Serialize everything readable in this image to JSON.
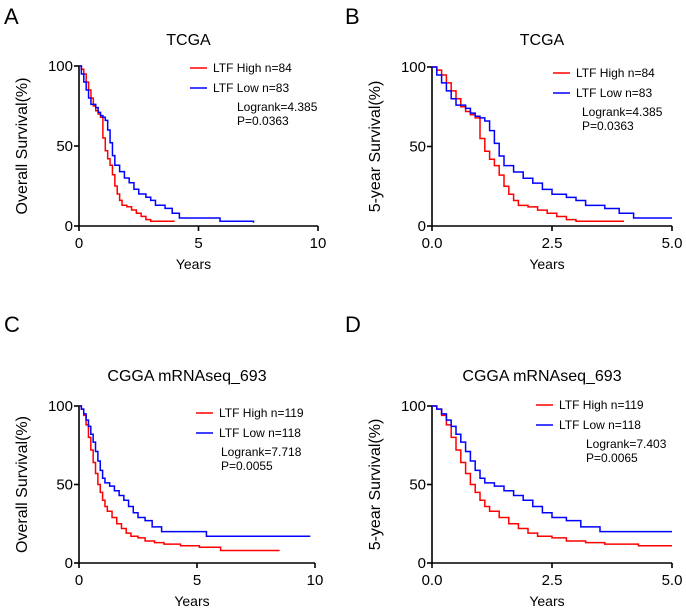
{
  "chart_data": [
    {
      "type": "line",
      "subtype": "kaplan-meier",
      "panel": "A",
      "title": "TCGA",
      "xlabel": "Years",
      "ylabel": "Overall Survival(%)",
      "xlim": [
        0,
        10
      ],
      "ylim": [
        0,
        100
      ],
      "xticks": [
        "0",
        "5",
        "10"
      ],
      "yticks": [
        "0",
        "50",
        "100"
      ],
      "grid": false,
      "legend_position": "top-right",
      "stats": {
        "logrank": "Logrank=4.385",
        "p": "P=0.0363"
      },
      "series": [
        {
          "name": "LTF High n=84",
          "color": "#ff0000",
          "x": [
            0,
            0.1,
            0.2,
            0.3,
            0.4,
            0.5,
            0.6,
            0.7,
            0.8,
            0.9,
            1.0,
            1.1,
            1.2,
            1.3,
            1.4,
            1.5,
            1.6,
            1.7,
            1.8,
            2.0,
            2.2,
            2.4,
            2.6,
            2.8,
            3.0,
            4.0
          ],
          "y": [
            100,
            98,
            95,
            90,
            85,
            80,
            75,
            72,
            70,
            68,
            55,
            47,
            42,
            38,
            32,
            25,
            20,
            16,
            13,
            12,
            10,
            8,
            6,
            4,
            3,
            3
          ]
        },
        {
          "name": "LTF Low n=83",
          "color": "#0000ff",
          "x": [
            0,
            0.1,
            0.2,
            0.3,
            0.4,
            0.5,
            0.6,
            0.7,
            0.8,
            0.9,
            1.0,
            1.1,
            1.2,
            1.3,
            1.4,
            1.5,
            1.7,
            1.9,
            2.1,
            2.3,
            2.5,
            2.8,
            3.0,
            3.2,
            3.6,
            3.9,
            4.2,
            5.9,
            7.3
          ],
          "y": [
            100,
            95,
            90,
            85,
            80,
            76,
            76,
            74,
            71,
            69,
            68,
            66,
            60,
            52,
            44,
            38,
            34,
            30,
            27,
            23,
            20,
            18,
            16,
            13,
            11,
            8,
            5,
            3,
            2
          ]
        }
      ]
    },
    {
      "type": "line",
      "subtype": "kaplan-meier",
      "panel": "B",
      "title": "TCGA",
      "xlabel": "Years",
      "ylabel": "5-year Survival(%)",
      "xlim": [
        0,
        5
      ],
      "ylim": [
        0,
        100
      ],
      "xticks": [
        "0.0",
        "2.5",
        "5.0"
      ],
      "yticks": [
        "0",
        "50",
        "100"
      ],
      "grid": false,
      "legend_position": "top-right",
      "stats": {
        "logrank": "Logrank=4.385",
        "p": "P=0.0363"
      },
      "series": [
        {
          "name": "LTF High n=84",
          "color": "#ff0000",
          "x": [
            0,
            0.1,
            0.2,
            0.3,
            0.4,
            0.5,
            0.6,
            0.7,
            0.8,
            0.9,
            1.0,
            1.1,
            1.2,
            1.3,
            1.4,
            1.5,
            1.6,
            1.7,
            1.8,
            2.0,
            2.2,
            2.4,
            2.6,
            2.8,
            3.0,
            4.0
          ],
          "y": [
            100,
            98,
            95,
            90,
            85,
            80,
            75,
            72,
            70,
            68,
            55,
            47,
            42,
            38,
            32,
            25,
            20,
            16,
            13,
            12,
            10,
            8,
            6,
            4,
            3,
            3
          ]
        },
        {
          "name": "LTF Low n=83",
          "color": "#0000ff",
          "x": [
            0,
            0.1,
            0.2,
            0.3,
            0.4,
            0.5,
            0.6,
            0.7,
            0.8,
            0.9,
            1.0,
            1.1,
            1.2,
            1.3,
            1.4,
            1.5,
            1.7,
            1.9,
            2.1,
            2.3,
            2.5,
            2.8,
            3.0,
            3.2,
            3.6,
            3.9,
            4.2,
            5.0
          ],
          "y": [
            100,
            95,
            90,
            85,
            80,
            76,
            76,
            74,
            71,
            69,
            68,
            66,
            60,
            52,
            44,
            38,
            34,
            30,
            27,
            23,
            20,
            18,
            16,
            13,
            11,
            8,
            5,
            5
          ]
        }
      ]
    },
    {
      "type": "line",
      "subtype": "kaplan-meier",
      "panel": "C",
      "title": "CGGA mRNAseq_693",
      "xlabel": "Years",
      "ylabel": "Overall Survival(%)",
      "xlim": [
        0,
        10
      ],
      "ylim": [
        0,
        100
      ],
      "xticks": [
        "0",
        "5",
        "10"
      ],
      "yticks": [
        "0",
        "50",
        "100"
      ],
      "grid": false,
      "legend_position": "top-right",
      "stats": {
        "logrank": "Logrank=7.718",
        "p": "P=0.0055"
      },
      "series": [
        {
          "name": "LTF High n=119",
          "color": "#ff0000",
          "x": [
            0,
            0.1,
            0.2,
            0.3,
            0.4,
            0.5,
            0.6,
            0.7,
            0.8,
            0.9,
            1.0,
            1.1,
            1.2,
            1.4,
            1.6,
            1.8,
            2.0,
            2.2,
            2.5,
            2.8,
            3.2,
            3.6,
            4.3,
            5.1,
            6.0,
            8.5
          ],
          "y": [
            100,
            98,
            94,
            88,
            80,
            72,
            64,
            57,
            50,
            45,
            40,
            36,
            33,
            29,
            25,
            22,
            19,
            17,
            16,
            14,
            13,
            12,
            11,
            10,
            8,
            8
          ]
        },
        {
          "name": "LTF Low n=118",
          "color": "#0000ff",
          "x": [
            0,
            0.1,
            0.2,
            0.3,
            0.4,
            0.5,
            0.6,
            0.7,
            0.8,
            0.9,
            1.0,
            1.1,
            1.3,
            1.5,
            1.7,
            1.9,
            2.1,
            2.3,
            2.5,
            2.8,
            3.1,
            3.5,
            5.4,
            9.8
          ],
          "y": [
            100,
            98,
            95,
            91,
            87,
            82,
            77,
            71,
            65,
            59,
            54,
            51,
            49,
            46,
            43,
            40,
            36,
            32,
            29,
            27,
            23,
            20,
            17,
            17
          ]
        }
      ]
    },
    {
      "type": "line",
      "subtype": "kaplan-meier",
      "panel": "D",
      "title": "CGGA mRNAseq_693",
      "xlabel": "Years",
      "ylabel": "5-year Survival(%)",
      "xlim": [
        0,
        5
      ],
      "ylim": [
        0,
        100
      ],
      "xticks": [
        "0.0",
        "2.5",
        "5.0"
      ],
      "yticks": [
        "0",
        "50",
        "100"
      ],
      "grid": false,
      "legend_position": "top-right",
      "stats": {
        "logrank": "Logrank=7.403",
        "p": "P=0.0065"
      },
      "series": [
        {
          "name": "LTF High n=119",
          "color": "#ff0000",
          "x": [
            0,
            0.1,
            0.2,
            0.3,
            0.4,
            0.5,
            0.6,
            0.7,
            0.8,
            0.9,
            1.0,
            1.1,
            1.2,
            1.4,
            1.6,
            1.8,
            2.0,
            2.2,
            2.5,
            2.8,
            3.2,
            3.6,
            4.3,
            5.0
          ],
          "y": [
            100,
            98,
            94,
            88,
            80,
            72,
            64,
            57,
            50,
            45,
            40,
            36,
            33,
            29,
            25,
            22,
            19,
            17,
            16,
            14,
            13,
            12,
            11,
            11
          ]
        },
        {
          "name": "LTF Low n=118",
          "color": "#0000ff",
          "x": [
            0,
            0.1,
            0.2,
            0.3,
            0.4,
            0.5,
            0.6,
            0.7,
            0.8,
            0.9,
            1.0,
            1.1,
            1.3,
            1.5,
            1.7,
            1.9,
            2.1,
            2.3,
            2.5,
            2.8,
            3.1,
            3.5,
            5.0
          ],
          "y": [
            100,
            98,
            95,
            91,
            87,
            82,
            77,
            71,
            65,
            59,
            54,
            51,
            49,
            46,
            43,
            40,
            36,
            32,
            29,
            27,
            23,
            20,
            20
          ]
        }
      ]
    }
  ]
}
